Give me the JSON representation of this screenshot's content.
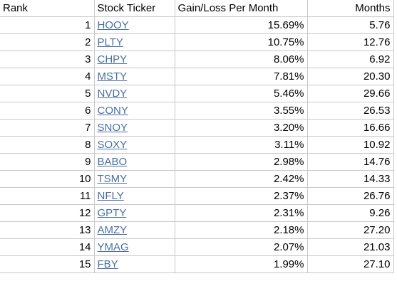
{
  "headers": {
    "rank": "Rank",
    "ticker": "Stock Ticker",
    "gain": "Gain/Loss Per Month",
    "months": "Months"
  },
  "rows": [
    {
      "rank": "1",
      "ticker": "HOOY",
      "gain": "15.69%",
      "months": "5.76"
    },
    {
      "rank": "2",
      "ticker": "PLTY",
      "gain": "10.75%",
      "months": "12.76"
    },
    {
      "rank": "3",
      "ticker": "CHPY",
      "gain": "8.06%",
      "months": "6.92"
    },
    {
      "rank": "4",
      "ticker": "MSTY",
      "gain": "7.81%",
      "months": "20.30"
    },
    {
      "rank": "5",
      "ticker": "NVDY",
      "gain": "5.46%",
      "months": "29.66"
    },
    {
      "rank": "6",
      "ticker": "CONY",
      "gain": "3.55%",
      "months": "26.53"
    },
    {
      "rank": "7",
      "ticker": "SNOY",
      "gain": "3.20%",
      "months": "16.66"
    },
    {
      "rank": "8",
      "ticker": "SOXY",
      "gain": "3.11%",
      "months": "10.92"
    },
    {
      "rank": "9",
      "ticker": "BABO",
      "gain": "2.98%",
      "months": "14.76"
    },
    {
      "rank": "10",
      "ticker": "TSMY",
      "gain": "2.42%",
      "months": "14.33"
    },
    {
      "rank": "11",
      "ticker": "NFLY",
      "gain": "2.37%",
      "months": "26.76"
    },
    {
      "rank": "12",
      "ticker": "GPTY",
      "gain": "2.31%",
      "months": "9.26"
    },
    {
      "rank": "13",
      "ticker": "AMZY",
      "gain": "2.18%",
      "months": "27.20"
    },
    {
      "rank": "14",
      "ticker": "YMAG",
      "gain": "2.07%",
      "months": "21.03"
    },
    {
      "rank": "15",
      "ticker": "FBY",
      "gain": "1.99%",
      "months": "27.10"
    }
  ],
  "colors": {
    "link": "#4a6fa5",
    "grid": "#c8c8c8"
  }
}
